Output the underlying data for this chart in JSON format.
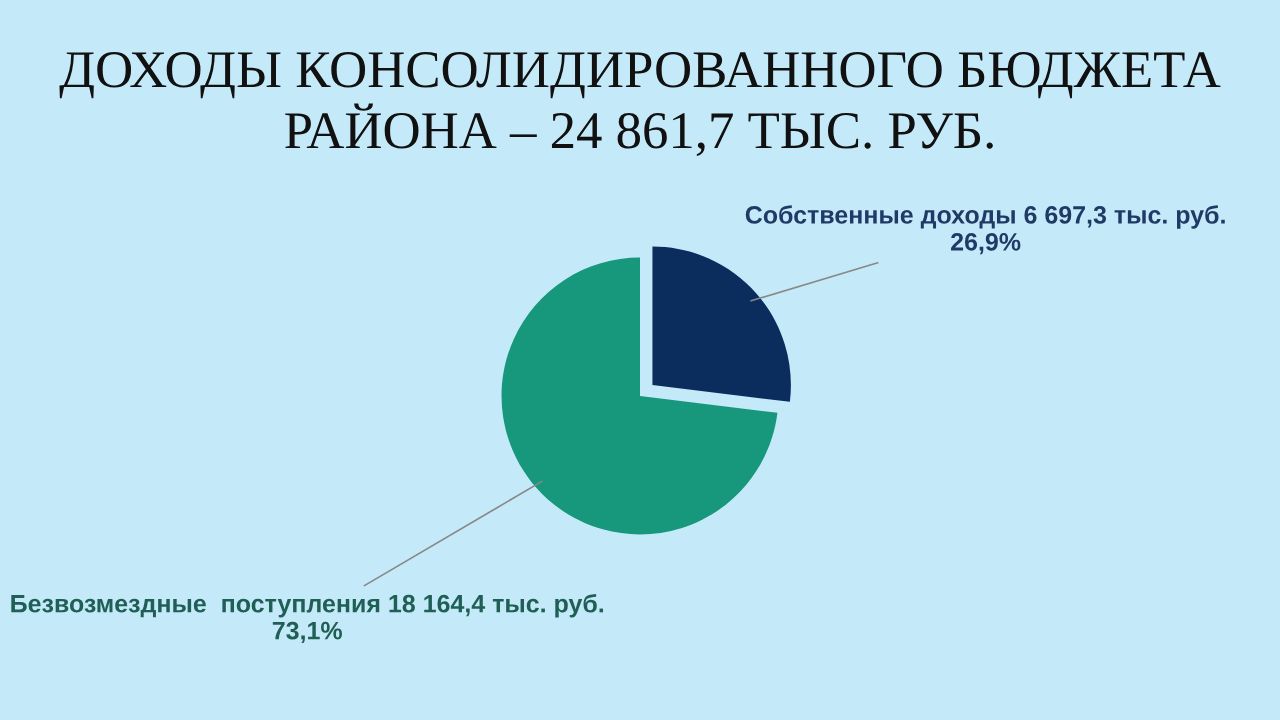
{
  "chart_data": {
    "type": "pie",
    "title": "ДОХОДЫ КОНСОЛИДИРОВАННОГО БЮДЖЕТА\nРАЙОНА – 24 861,7 ТЫС. РУБ.",
    "categories": [
      "Собственные доходы",
      "Безвозмездные  поступления"
    ],
    "values": [
      6697.3,
      18164.4
    ],
    "colors": [
      "#0b2d5e",
      "#17977b"
    ],
    "value_labels": [
      "6 697,3 тыс. руб.\n26,9%",
      "18 164,4 тыс. руб.\n73,1%"
    ]
  }
}
